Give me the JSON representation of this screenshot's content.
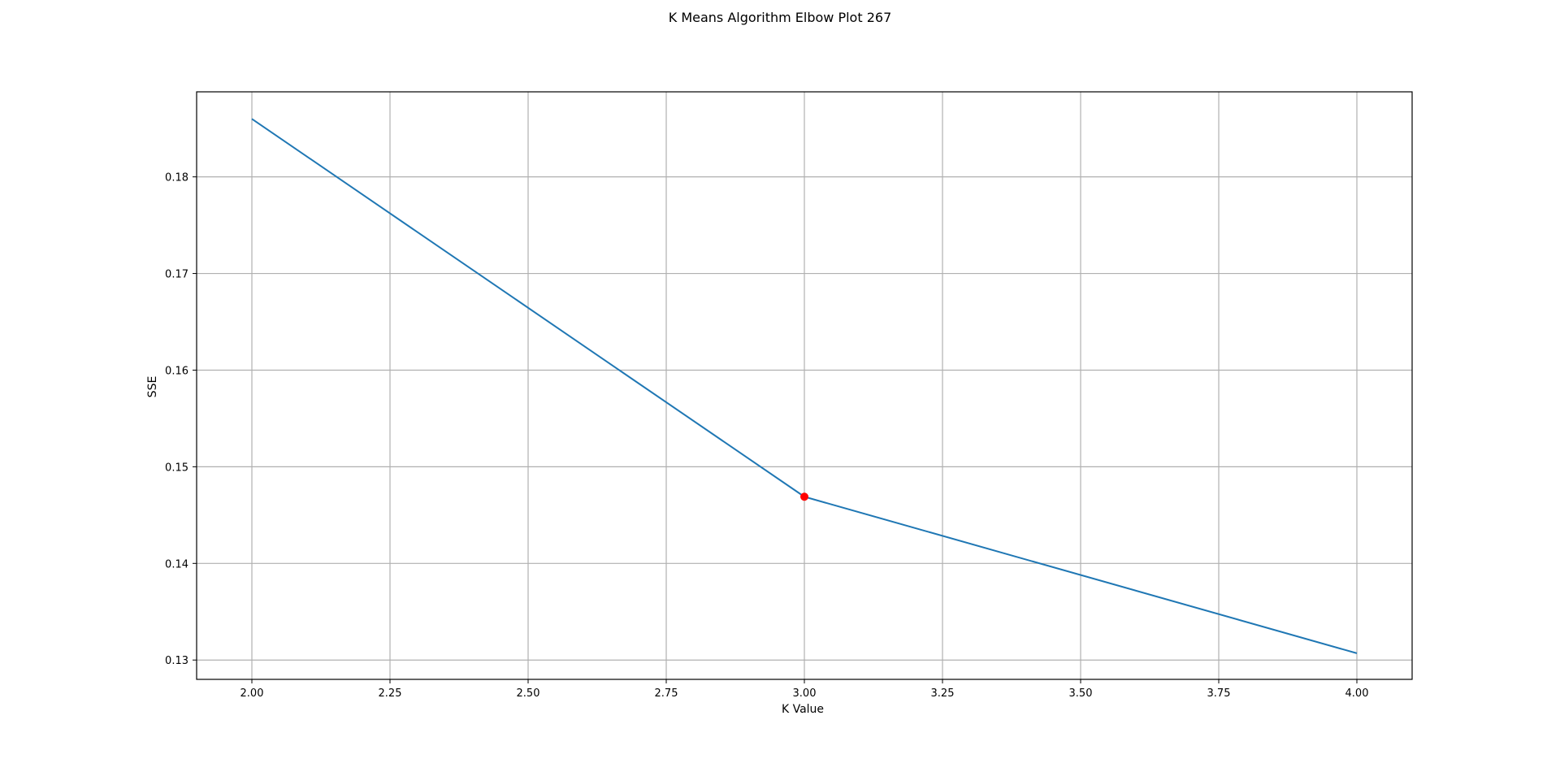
{
  "chart_data": {
    "type": "line",
    "title": "K Means Algorithm Elbow Plot 267",
    "xlabel": "K Value",
    "ylabel": "SSE",
    "xlim": [
      1.9,
      4.1
    ],
    "ylim": [
      0.128,
      0.1888
    ],
    "grid": true,
    "x_ticks": [
      2.0,
      2.25,
      2.5,
      2.75,
      3.0,
      3.25,
      3.5,
      3.75,
      4.0
    ],
    "x_tick_labels": [
      "2.00",
      "2.25",
      "2.50",
      "2.75",
      "3.00",
      "3.25",
      "3.50",
      "3.75",
      "4.00"
    ],
    "y_ticks": [
      0.13,
      0.14,
      0.15,
      0.16,
      0.17,
      0.18
    ],
    "y_tick_labels": [
      "0.13",
      "0.14",
      "0.15",
      "0.16",
      "0.17",
      "0.18"
    ],
    "series": [
      {
        "color": "#1f77b4",
        "x": [
          2,
          3,
          4
        ],
        "y": [
          0.186,
          0.1469,
          0.1307
        ]
      }
    ],
    "highlight_point": {
      "x": 3,
      "y": 0.1469,
      "color": "#ff0000"
    }
  }
}
